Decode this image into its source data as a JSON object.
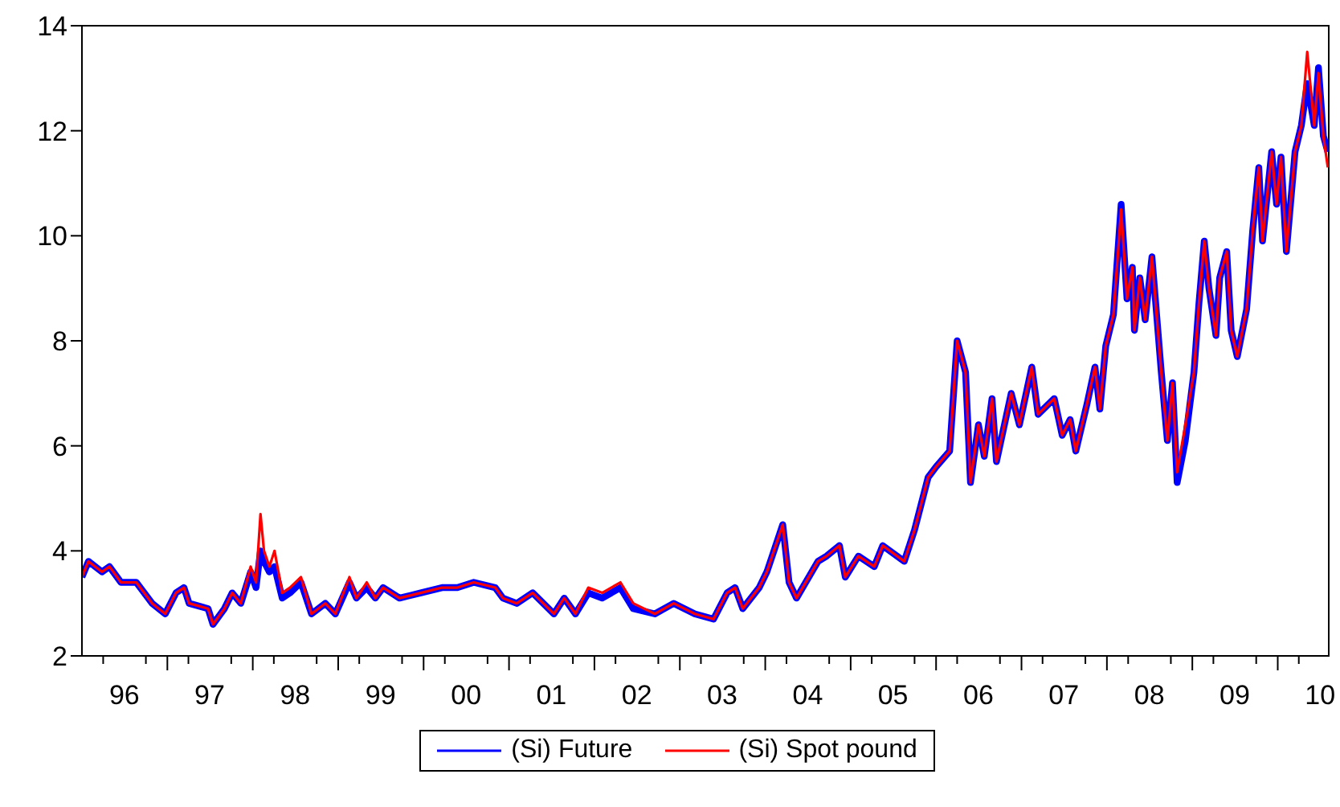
{
  "chart_data": {
    "type": "line",
    "legend": "bottom",
    "grid": false,
    "x": [
      "1996-01-01",
      "1996-01-29",
      "1996-03-27",
      "1996-04-28",
      "1996-06-16",
      "1996-08-21",
      "1996-10-28",
      "1996-12-23",
      "1997-02-07",
      "1997-03-13",
      "1997-04-04",
      "1997-06-24",
      "1997-07-15",
      "1997-09-02",
      "1997-10-05",
      "1997-11-11",
      "1997-12-23",
      "1998-01-15",
      "1998-02-03",
      "1998-02-18",
      "1998-03-13",
      "1998-04-04",
      "1998-05-07",
      "1998-06-09",
      "1998-07-26",
      "1998-09-09",
      "1998-11-07",
      "1998-12-20",
      "1999-02-18",
      "1999-03-20",
      "1999-05-03",
      "1999-06-09",
      "1999-07-12",
      "1999-09-20",
      "1999-12-20",
      "2000-03-20",
      "2000-05-25",
      "2000-08-03",
      "2000-11-03",
      "2000-12-06",
      "2001-02-03",
      "2001-04-12",
      "2001-07-12",
      "2001-08-25",
      "2001-10-12",
      "2001-12-06",
      "2002-02-03",
      "2002-04-22",
      "2002-06-16",
      "2002-09-16",
      "2002-12-06",
      "2003-03-06",
      "2003-05-25",
      "2003-07-22",
      "2003-08-25",
      "2003-09-27",
      "2003-12-06",
      "2004-01-08",
      "2004-03-16",
      "2004-04-12",
      "2004-05-14",
      "2004-08-14",
      "2004-09-20",
      "2004-11-14",
      "2004-12-09",
      "2005-02-03",
      "2005-04-12",
      "2005-05-18",
      "2005-08-18",
      "2005-10-01",
      "2005-11-28",
      "2006-01-01",
      "2006-02-28",
      "2006-04-01",
      "2006-05-07",
      "2006-05-28",
      "2006-07-01",
      "2006-07-26",
      "2006-08-28",
      "2006-09-16",
      "2006-11-18",
      "2006-12-23",
      "2007-02-14",
      "2007-03-13",
      "2007-05-21",
      "2007-06-24",
      "2007-07-28",
      "2007-08-21",
      "2007-10-08",
      "2007-11-11",
      "2007-12-02",
      "2007-12-27",
      "2008-01-29",
      "2008-03-02",
      "2008-03-27",
      "2008-04-19",
      "2008-04-28",
      "2008-05-21",
      "2008-06-13",
      "2008-07-12",
      "2008-08-21",
      "2008-09-16",
      "2008-10-08",
      "2008-10-28",
      "2008-12-02",
      "2009-01-08",
      "2009-01-29",
      "2009-02-21",
      "2009-03-13",
      "2009-04-12",
      "2009-04-28",
      "2009-05-28",
      "2009-06-16",
      "2009-07-12",
      "2009-08-21",
      "2009-09-16",
      "2009-10-12",
      "2009-10-28",
      "2009-12-06",
      "2009-12-27",
      "2010-01-15",
      "2010-02-07",
      "2010-03-16",
      "2010-04-12",
      "2010-05-07",
      "2010-06-06",
      "2010-06-24",
      "2010-07-15",
      "2010-08-03"
    ],
    "series": [
      {
        "name": "(Si) Future",
        "color": "#0000ff",
        "values": [
          3.5,
          3.8,
          3.6,
          3.7,
          3.4,
          3.4,
          3.0,
          2.8,
          3.2,
          3.3,
          3.0,
          2.9,
          2.6,
          2.9,
          3.2,
          3.0,
          3.6,
          3.3,
          4.0,
          3.8,
          3.6,
          3.7,
          3.1,
          3.2,
          3.4,
          2.8,
          3.0,
          2.8,
          3.4,
          3.1,
          3.3,
          3.1,
          3.3,
          3.1,
          3.2,
          3.3,
          3.3,
          3.4,
          3.3,
          3.1,
          3.0,
          3.2,
          2.8,
          3.1,
          2.8,
          3.2,
          3.1,
          3.3,
          2.9,
          2.8,
          3.0,
          2.8,
          2.7,
          3.2,
          3.3,
          2.9,
          3.3,
          3.6,
          4.5,
          3.4,
          3.1,
          3.8,
          3.9,
          4.1,
          3.5,
          3.9,
          3.7,
          4.1,
          3.8,
          4.4,
          5.4,
          5.6,
          5.9,
          8.0,
          7.4,
          5.3,
          6.4,
          5.8,
          6.9,
          5.7,
          7.0,
          6.4,
          7.5,
          6.6,
          6.9,
          6.2,
          6.5,
          5.9,
          6.8,
          7.5,
          6.7,
          7.9,
          8.5,
          10.6,
          8.8,
          9.4,
          8.2,
          9.2,
          8.4,
          9.6,
          7.4,
          6.1,
          7.2,
          5.3,
          6.1,
          7.4,
          8.7,
          9.9,
          9.0,
          8.1,
          9.2,
          9.7,
          8.2,
          7.7,
          8.6,
          10.1,
          11.3,
          9.9,
          11.6,
          10.6,
          11.5,
          9.7,
          11.6,
          12.1,
          12.9,
          12.1,
          13.2,
          11.9,
          11.6
        ]
      },
      {
        "name": "(Si) Spot pound",
        "color": "#ff0000",
        "values": [
          3.5,
          3.8,
          3.6,
          3.7,
          3.4,
          3.4,
          3.0,
          2.8,
          3.2,
          3.3,
          3.0,
          2.9,
          2.6,
          2.9,
          3.2,
          3.0,
          3.7,
          3.4,
          4.7,
          4.0,
          3.7,
          4.0,
          3.2,
          3.3,
          3.5,
          2.8,
          3.0,
          2.8,
          3.5,
          3.1,
          3.4,
          3.1,
          3.3,
          3.1,
          3.2,
          3.3,
          3.3,
          3.4,
          3.3,
          3.1,
          3.0,
          3.2,
          2.8,
          3.1,
          2.8,
          3.3,
          3.2,
          3.4,
          3.0,
          2.8,
          3.0,
          2.8,
          2.7,
          3.2,
          3.3,
          2.9,
          3.3,
          3.6,
          4.5,
          3.4,
          3.1,
          3.8,
          3.9,
          4.1,
          3.5,
          3.9,
          3.7,
          4.1,
          3.8,
          4.4,
          5.4,
          5.6,
          5.9,
          8.0,
          7.4,
          5.3,
          6.4,
          5.8,
          6.9,
          5.7,
          7.0,
          6.4,
          7.5,
          6.6,
          6.9,
          6.2,
          6.5,
          5.9,
          6.8,
          7.5,
          6.7,
          7.9,
          8.5,
          10.5,
          8.8,
          9.4,
          8.2,
          9.2,
          8.4,
          9.6,
          7.4,
          6.1,
          7.2,
          5.5,
          6.4,
          7.4,
          8.7,
          9.9,
          9.0,
          8.1,
          9.2,
          9.7,
          8.2,
          7.7,
          8.6,
          10.1,
          11.3,
          9.9,
          11.6,
          10.6,
          11.5,
          9.7,
          11.6,
          12.1,
          13.5,
          12.1,
          13.1,
          11.9,
          11.3
        ]
      }
    ],
    "xlim": [
      "1996-01-01",
      "2010-08-07"
    ],
    "xticks": [
      {
        "value": "1996-04-01",
        "label": null
      },
      {
        "value": "1996-07-01",
        "label": "96"
      },
      {
        "value": "1996-10-01",
        "label": null
      },
      {
        "value": "1997-01-01",
        "label": null
      },
      {
        "value": "1997-04-01",
        "label": null
      },
      {
        "value": "1997-07-01",
        "label": "97"
      },
      {
        "value": "1997-10-01",
        "label": null
      },
      {
        "value": "1998-01-01",
        "label": null
      },
      {
        "value": "1998-04-01",
        "label": null
      },
      {
        "value": "1998-07-01",
        "label": "98"
      },
      {
        "value": "1998-10-01",
        "label": null
      },
      {
        "value": "1999-01-01",
        "label": null
      },
      {
        "value": "1999-04-01",
        "label": null
      },
      {
        "value": "1999-07-01",
        "label": "99"
      },
      {
        "value": "1999-10-01",
        "label": null
      },
      {
        "value": "2000-01-01",
        "label": null
      },
      {
        "value": "2000-04-01",
        "label": null
      },
      {
        "value": "2000-07-01",
        "label": "00"
      },
      {
        "value": "2000-10-01",
        "label": null
      },
      {
        "value": "2001-01-01",
        "label": null
      },
      {
        "value": "2001-04-01",
        "label": null
      },
      {
        "value": "2001-07-01",
        "label": "01"
      },
      {
        "value": "2001-10-01",
        "label": null
      },
      {
        "value": "2002-01-01",
        "label": null
      },
      {
        "value": "2002-04-01",
        "label": null
      },
      {
        "value": "2002-07-01",
        "label": "02"
      },
      {
        "value": "2002-10-01",
        "label": null
      },
      {
        "value": "2003-01-01",
        "label": null
      },
      {
        "value": "2003-04-01",
        "label": null
      },
      {
        "value": "2003-07-01",
        "label": "03"
      },
      {
        "value": "2003-10-01",
        "label": null
      },
      {
        "value": "2004-01-01",
        "label": null
      },
      {
        "value": "2004-04-01",
        "label": null
      },
      {
        "value": "2004-07-01",
        "label": "04"
      },
      {
        "value": "2004-10-01",
        "label": null
      },
      {
        "value": "2005-01-01",
        "label": null
      },
      {
        "value": "2005-04-01",
        "label": null
      },
      {
        "value": "2005-07-01",
        "label": "05"
      },
      {
        "value": "2005-10-01",
        "label": null
      },
      {
        "value": "2006-01-01",
        "label": null
      },
      {
        "value": "2006-04-01",
        "label": null
      },
      {
        "value": "2006-07-01",
        "label": "06"
      },
      {
        "value": "2006-10-01",
        "label": null
      },
      {
        "value": "2007-01-01",
        "label": null
      },
      {
        "value": "2007-04-01",
        "label": null
      },
      {
        "value": "2007-07-01",
        "label": "07"
      },
      {
        "value": "2007-10-01",
        "label": null
      },
      {
        "value": "2008-01-01",
        "label": null
      },
      {
        "value": "2008-04-01",
        "label": null
      },
      {
        "value": "2008-07-01",
        "label": "08"
      },
      {
        "value": "2008-10-01",
        "label": null
      },
      {
        "value": "2009-01-01",
        "label": null
      },
      {
        "value": "2009-04-01",
        "label": null
      },
      {
        "value": "2009-07-01",
        "label": "09"
      },
      {
        "value": "2009-10-01",
        "label": null
      },
      {
        "value": "2010-01-01",
        "label": null
      },
      {
        "value": "2010-04-01",
        "label": null
      },
      {
        "value": "2010-07-01",
        "label": "10"
      }
    ],
    "ylim": [
      2,
      14
    ],
    "yticks": [
      2,
      4,
      6,
      8,
      10,
      12,
      14
    ]
  }
}
